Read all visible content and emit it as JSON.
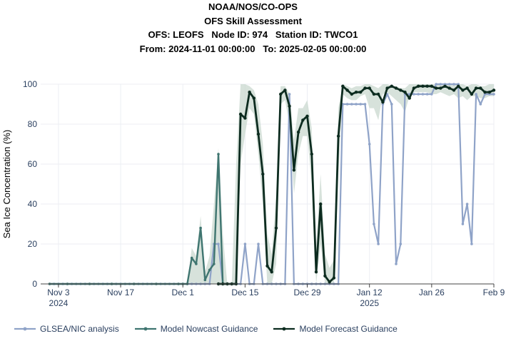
{
  "header": {
    "line1": "NOAA/NOS/CO-OPS",
    "line2": "OFS Skill Assessment",
    "line3": "OFS: LEOFS   Node ID: 974   Station ID: TWCO1",
    "line4": "From: 2024-11-01 00:00:00   To: 2025-02-05 00:00:00"
  },
  "colors": {
    "glsea": "#8fa3c8",
    "nowcast": "#3f7570",
    "forecast": "#0c2b1f",
    "band": "#c9d8cf",
    "grid": "#eceef3",
    "axis": "#2a3f5f"
  },
  "chart_data": {
    "type": "line",
    "title": "OFS Skill Assessment",
    "xlabel": "",
    "ylabel": "Sea Ice Concentration (%)",
    "xlim": [
      "2024-10-30",
      "2025-02-09"
    ],
    "ylim": [
      0,
      100
    ],
    "yticks": [
      0,
      20,
      40,
      60,
      80,
      100
    ],
    "xticks": [
      {
        "date": "2024-11-03",
        "label": "Nov 3",
        "sublabel": "2024"
      },
      {
        "date": "2024-11-17",
        "label": "Nov 17",
        "sublabel": ""
      },
      {
        "date": "2024-12-01",
        "label": "Dec 1",
        "sublabel": ""
      },
      {
        "date": "2024-12-15",
        "label": "Dec 15",
        "sublabel": ""
      },
      {
        "date": "2024-12-29",
        "label": "Dec 29",
        "sublabel": ""
      },
      {
        "date": "2025-01-12",
        "label": "Jan 12",
        "sublabel": "2025"
      },
      {
        "date": "2025-01-26",
        "label": "Jan 26",
        "sublabel": ""
      },
      {
        "date": "2025-02-09",
        "label": "Feb 9",
        "sublabel": ""
      }
    ],
    "grid": true,
    "legend": "bottom",
    "series": [
      {
        "name": "GLSEA/NIC analysis",
        "key": "glsea",
        "points": [
          [
            "2024-11-01",
            0
          ],
          [
            "2024-11-02",
            0
          ],
          [
            "2024-11-03",
            0
          ],
          [
            "2024-11-04",
            0
          ],
          [
            "2024-11-05",
            0
          ],
          [
            "2024-11-06",
            0
          ],
          [
            "2024-11-07",
            0
          ],
          [
            "2024-11-08",
            0
          ],
          [
            "2024-11-09",
            0
          ],
          [
            "2024-11-10",
            0
          ],
          [
            "2024-11-11",
            0
          ],
          [
            "2024-11-12",
            0
          ],
          [
            "2024-11-13",
            0
          ],
          [
            "2024-11-14",
            0
          ],
          [
            "2024-11-15",
            0
          ],
          [
            "2024-11-16",
            0
          ],
          [
            "2024-11-17",
            0
          ],
          [
            "2024-11-18",
            0
          ],
          [
            "2024-11-19",
            0
          ],
          [
            "2024-11-20",
            0
          ],
          [
            "2024-11-21",
            0
          ],
          [
            "2024-11-22",
            0
          ],
          [
            "2024-11-23",
            0
          ],
          [
            "2024-11-24",
            0
          ],
          [
            "2024-11-25",
            0
          ],
          [
            "2024-11-26",
            0
          ],
          [
            "2024-11-27",
            0
          ],
          [
            "2024-11-28",
            0
          ],
          [
            "2024-11-29",
            0
          ],
          [
            "2024-11-30",
            0
          ],
          [
            "2024-12-01",
            0
          ],
          [
            "2024-12-02",
            0
          ],
          [
            "2024-12-03",
            0
          ],
          [
            "2024-12-04",
            0
          ],
          [
            "2024-12-05",
            0
          ],
          [
            "2024-12-06",
            0
          ],
          [
            "2024-12-07",
            0
          ],
          [
            "2024-12-08",
            20
          ],
          [
            "2024-12-09",
            20
          ],
          [
            "2024-12-10",
            0
          ],
          [
            "2024-12-11",
            0
          ],
          [
            "2024-12-12",
            0
          ],
          [
            "2024-12-13",
            0
          ],
          [
            "2024-12-14",
            0
          ],
          [
            "2024-12-15",
            20
          ],
          [
            "2024-12-16",
            0
          ],
          [
            "2024-12-17",
            0
          ],
          [
            "2024-12-18",
            20
          ],
          [
            "2024-12-19",
            0
          ],
          [
            "2024-12-20",
            0
          ],
          [
            "2024-12-21",
            0
          ],
          [
            "2024-12-22",
            0
          ],
          [
            "2024-12-23",
            0
          ],
          [
            "2024-12-24",
            0
          ],
          [
            "2024-12-25",
            95
          ],
          [
            "2024-12-26",
            0
          ],
          [
            "2024-12-27",
            0
          ],
          [
            "2024-12-28",
            0
          ],
          [
            "2024-12-29",
            0
          ],
          [
            "2024-12-30",
            0
          ],
          [
            "2024-12-31",
            0
          ],
          [
            "2025-01-01",
            0
          ],
          [
            "2025-01-02",
            0
          ],
          [
            "2025-01-03",
            0
          ],
          [
            "2025-01-04",
            0
          ],
          [
            "2025-01-05",
            0
          ],
          [
            "2025-01-06",
            90
          ],
          [
            "2025-01-07",
            90
          ],
          [
            "2025-01-08",
            90
          ],
          [
            "2025-01-09",
            90
          ],
          [
            "2025-01-10",
            90
          ],
          [
            "2025-01-11",
            90
          ],
          [
            "2025-01-12",
            70
          ],
          [
            "2025-01-13",
            30
          ],
          [
            "2025-01-14",
            20
          ],
          [
            "2025-01-15",
            90
          ],
          [
            "2025-01-16",
            95
          ],
          [
            "2025-01-17",
            90
          ],
          [
            "2025-01-18",
            10
          ],
          [
            "2025-01-19",
            20
          ],
          [
            "2025-01-20",
            95
          ],
          [
            "2025-01-21",
            95
          ],
          [
            "2025-01-22",
            95
          ],
          [
            "2025-01-23",
            95
          ],
          [
            "2025-01-24",
            95
          ],
          [
            "2025-01-25",
            95
          ],
          [
            "2025-01-26",
            95
          ],
          [
            "2025-01-27",
            100
          ],
          [
            "2025-01-28",
            100
          ],
          [
            "2025-01-29",
            100
          ],
          [
            "2025-01-30",
            100
          ],
          [
            "2025-01-31",
            100
          ],
          [
            "2025-02-01",
            100
          ],
          [
            "2025-02-02",
            30
          ],
          [
            "2025-02-03",
            40
          ],
          [
            "2025-02-04",
            20
          ],
          [
            "2025-02-05",
            95
          ],
          [
            "2025-02-06",
            90
          ],
          [
            "2025-02-07",
            95
          ],
          [
            "2025-02-08",
            95
          ],
          [
            "2025-02-09",
            95
          ]
        ]
      },
      {
        "name": "Model Nowcast Guidance",
        "key": "nowcast",
        "points": [
          [
            "2024-11-01",
            0
          ],
          [
            "2024-11-05",
            0
          ],
          [
            "2024-11-10",
            0
          ],
          [
            "2024-11-15",
            0
          ],
          [
            "2024-11-20",
            0
          ],
          [
            "2024-11-25",
            0
          ],
          [
            "2024-11-30",
            0
          ],
          [
            "2024-12-01",
            0
          ],
          [
            "2024-12-02",
            0
          ],
          [
            "2024-12-03",
            13
          ],
          [
            "2024-12-04",
            10
          ],
          [
            "2024-12-05",
            28
          ],
          [
            "2024-12-06",
            2
          ],
          [
            "2024-12-07",
            7
          ],
          [
            "2024-12-08",
            10
          ],
          [
            "2024-12-09",
            65
          ],
          [
            "2024-12-10",
            0
          ]
        ]
      },
      {
        "name": "Model Forecast Guidance",
        "key": "forecast",
        "points": [
          [
            "2024-12-09",
            0
          ],
          [
            "2024-12-10",
            0
          ],
          [
            "2024-12-11",
            0
          ],
          [
            "2024-12-12",
            0
          ],
          [
            "2024-12-13",
            0
          ],
          [
            "2024-12-14",
            85
          ],
          [
            "2024-12-15",
            83
          ],
          [
            "2024-12-16",
            96
          ],
          [
            "2024-12-17",
            93
          ],
          [
            "2024-12-18",
            75
          ],
          [
            "2024-12-19",
            55
          ],
          [
            "2024-12-20",
            9
          ],
          [
            "2024-12-21",
            6
          ],
          [
            "2024-12-22",
            28
          ],
          [
            "2024-12-23",
            95
          ],
          [
            "2024-12-24",
            97
          ],
          [
            "2024-12-25",
            89
          ],
          [
            "2024-12-26",
            57
          ],
          [
            "2024-12-27",
            76
          ],
          [
            "2024-12-28",
            82
          ],
          [
            "2024-12-29",
            84
          ],
          [
            "2024-12-30",
            65
          ],
          [
            "2024-12-31",
            6
          ],
          [
            "2025-01-01",
            40
          ],
          [
            "2025-01-02",
            4
          ],
          [
            "2025-01-03",
            1
          ],
          [
            "2025-01-04",
            3
          ],
          [
            "2025-01-05",
            74
          ],
          [
            "2025-01-06",
            99
          ],
          [
            "2025-01-07",
            97
          ],
          [
            "2025-01-08",
            95
          ],
          [
            "2025-01-09",
            96
          ],
          [
            "2025-01-10",
            96
          ],
          [
            "2025-01-11",
            98
          ],
          [
            "2025-01-12",
            98
          ],
          [
            "2025-01-13",
            95
          ],
          [
            "2025-01-14",
            95
          ],
          [
            "2025-01-15",
            91
          ],
          [
            "2025-01-16",
            98
          ],
          [
            "2025-01-17",
            99
          ],
          [
            "2025-01-18",
            98
          ],
          [
            "2025-01-19",
            97
          ],
          [
            "2025-01-20",
            96
          ],
          [
            "2025-01-21",
            93
          ],
          [
            "2025-01-22",
            98
          ],
          [
            "2025-01-23",
            99
          ],
          [
            "2025-01-24",
            99
          ],
          [
            "2025-01-25",
            99
          ],
          [
            "2025-01-26",
            99
          ],
          [
            "2025-01-27",
            98
          ],
          [
            "2025-01-28",
            98
          ],
          [
            "2025-01-29",
            99
          ],
          [
            "2025-01-30",
            98
          ],
          [
            "2025-01-31",
            97
          ],
          [
            "2025-02-01",
            99
          ],
          [
            "2025-02-02",
            97
          ],
          [
            "2025-02-03",
            98
          ],
          [
            "2025-02-04",
            95
          ],
          [
            "2025-02-05",
            98
          ],
          [
            "2025-02-06",
            98
          ],
          [
            "2025-02-07",
            96
          ],
          [
            "2025-02-08",
            96
          ],
          [
            "2025-02-09",
            97
          ]
        ]
      }
    ],
    "band": {
      "key": "band",
      "points": [
        [
          "2024-12-02",
          0,
          0
        ],
        [
          "2024-12-03",
          0,
          18
        ],
        [
          "2024-12-04",
          0,
          14
        ],
        [
          "2024-12-05",
          0,
          34
        ],
        [
          "2024-12-06",
          0,
          6
        ],
        [
          "2024-12-07",
          0,
          14
        ],
        [
          "2024-12-08",
          0,
          40
        ],
        [
          "2024-12-09",
          0,
          68
        ],
        [
          "2024-12-10",
          0,
          25
        ],
        [
          "2024-12-11",
          0,
          0
        ],
        [
          "2024-12-12",
          0,
          0
        ],
        [
          "2024-12-13",
          0,
          60
        ],
        [
          "2024-12-14",
          60,
          100
        ],
        [
          "2024-12-15",
          75,
          100
        ],
        [
          "2024-12-16",
          88,
          99
        ],
        [
          "2024-12-17",
          85,
          97
        ],
        [
          "2024-12-18",
          65,
          90
        ],
        [
          "2024-12-19",
          40,
          70
        ],
        [
          "2024-12-20",
          0,
          25
        ],
        [
          "2024-12-21",
          0,
          15
        ],
        [
          "2024-12-22",
          10,
          45
        ],
        [
          "2024-12-23",
          90,
          99
        ],
        [
          "2024-12-24",
          92,
          99
        ],
        [
          "2024-12-25",
          80,
          95
        ],
        [
          "2024-12-26",
          45,
          72
        ],
        [
          "2024-12-27",
          65,
          88
        ],
        [
          "2024-12-28",
          74,
          88
        ],
        [
          "2024-12-29",
          74,
          92
        ],
        [
          "2024-12-30",
          50,
          78
        ],
        [
          "2024-12-31",
          0,
          18
        ],
        [
          "2025-01-01",
          20,
          55
        ],
        [
          "2025-01-02",
          0,
          15
        ],
        [
          "2025-01-03",
          0,
          8
        ],
        [
          "2025-01-04",
          0,
          12
        ],
        [
          "2025-01-05",
          55,
          88
        ],
        [
          "2025-01-06",
          95,
          100
        ],
        [
          "2025-01-07",
          93,
          99
        ],
        [
          "2025-01-08",
          92,
          98
        ],
        [
          "2025-01-09",
          92,
          99
        ],
        [
          "2025-01-10",
          94,
          99
        ],
        [
          "2025-01-11",
          95,
          100
        ],
        [
          "2025-01-12",
          88,
          100
        ],
        [
          "2025-01-13",
          88,
          99
        ],
        [
          "2025-01-14",
          82,
          98
        ],
        [
          "2025-01-15",
          95,
          100
        ],
        [
          "2025-01-16",
          96,
          100
        ],
        [
          "2025-01-17",
          94,
          99
        ],
        [
          "2025-01-18",
          92,
          99
        ],
        [
          "2025-01-19",
          90,
          98
        ],
        [
          "2025-01-20",
          86,
          98
        ],
        [
          "2025-01-21",
          94,
          100
        ],
        [
          "2025-01-22",
          96,
          100
        ],
        [
          "2025-01-23",
          96,
          100
        ],
        [
          "2025-01-24",
          96,
          100
        ],
        [
          "2025-01-25",
          96,
          100
        ],
        [
          "2025-01-26",
          95,
          100
        ],
        [
          "2025-01-27",
          95,
          100
        ],
        [
          "2025-01-28",
          96,
          100
        ],
        [
          "2025-01-29",
          95,
          100
        ],
        [
          "2025-01-30",
          94,
          100
        ],
        [
          "2025-01-31",
          95,
          100
        ],
        [
          "2025-02-01",
          93,
          100
        ],
        [
          "2025-02-02",
          94,
          100
        ],
        [
          "2025-02-03",
          92,
          99
        ],
        [
          "2025-02-04",
          94,
          100
        ],
        [
          "2025-02-05",
          94,
          100
        ],
        [
          "2025-02-06",
          93,
          99
        ],
        [
          "2025-02-07",
          93,
          99
        ],
        [
          "2025-02-08",
          94,
          100
        ],
        [
          "2025-02-09",
          94,
          100
        ]
      ]
    }
  }
}
